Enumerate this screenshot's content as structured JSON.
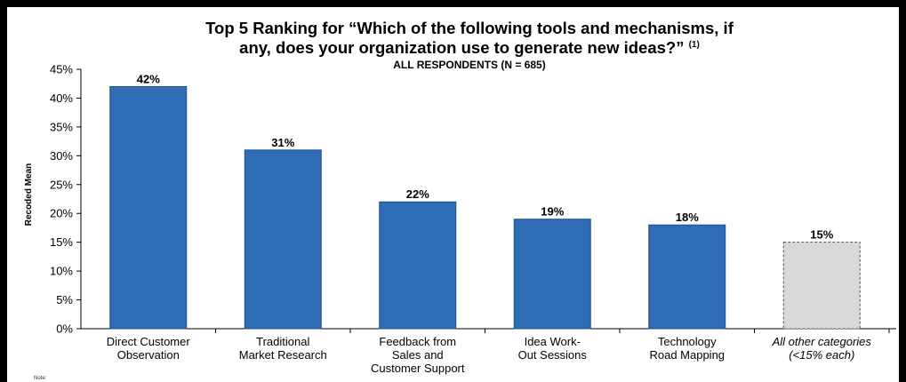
{
  "chart_data": {
    "type": "bar",
    "title_line1": "Top 5 Ranking for “Which of the following tools and mechanisms, if",
    "title_line2": "any, does your organization use to generate new ideas?”",
    "title_footnote": "(1)",
    "subtitle": "ALL RESPONDENTS (N = 685)",
    "ylabel": "Recoded Mean",
    "xlabel": "",
    "ylim": [
      0,
      45
    ],
    "yticks": [
      "0%",
      "5%",
      "10%",
      "15%",
      "20%",
      "25%",
      "30%",
      "35%",
      "40%",
      "45%"
    ],
    "grid": false,
    "categories": [
      "Direct Customer Observation",
      "Traditional Market Research",
      "Feedback from Sales and Customer Support",
      "Idea Work-Out Sessions",
      "Technology Road Mapping",
      "All other categories (<15% each)"
    ],
    "category_lines": [
      [
        "Direct Customer",
        "Observation"
      ],
      [
        "Traditional",
        "Market Research"
      ],
      [
        "Feedback from",
        "Sales and",
        "Customer Support"
      ],
      [
        "Idea Work-",
        "Out Sessions"
      ],
      [
        "Technology",
        "Road Mapping"
      ],
      [
        "All other categories",
        "(<15% each)"
      ]
    ],
    "values": [
      42,
      31,
      22,
      19,
      18,
      15
    ],
    "value_labels": [
      "42%",
      "31%",
      "22%",
      "19%",
      "18%",
      "15%"
    ],
    "bar_styles": [
      "solid",
      "solid",
      "solid",
      "solid",
      "solid",
      "dashed"
    ],
    "colors": {
      "bar": "#2e6db5",
      "bar_stroke": "#1f4f8a",
      "other_bar": "#d9d9d9",
      "other_stroke": "#555555",
      "axis": "#000000"
    }
  },
  "note": "Note:"
}
